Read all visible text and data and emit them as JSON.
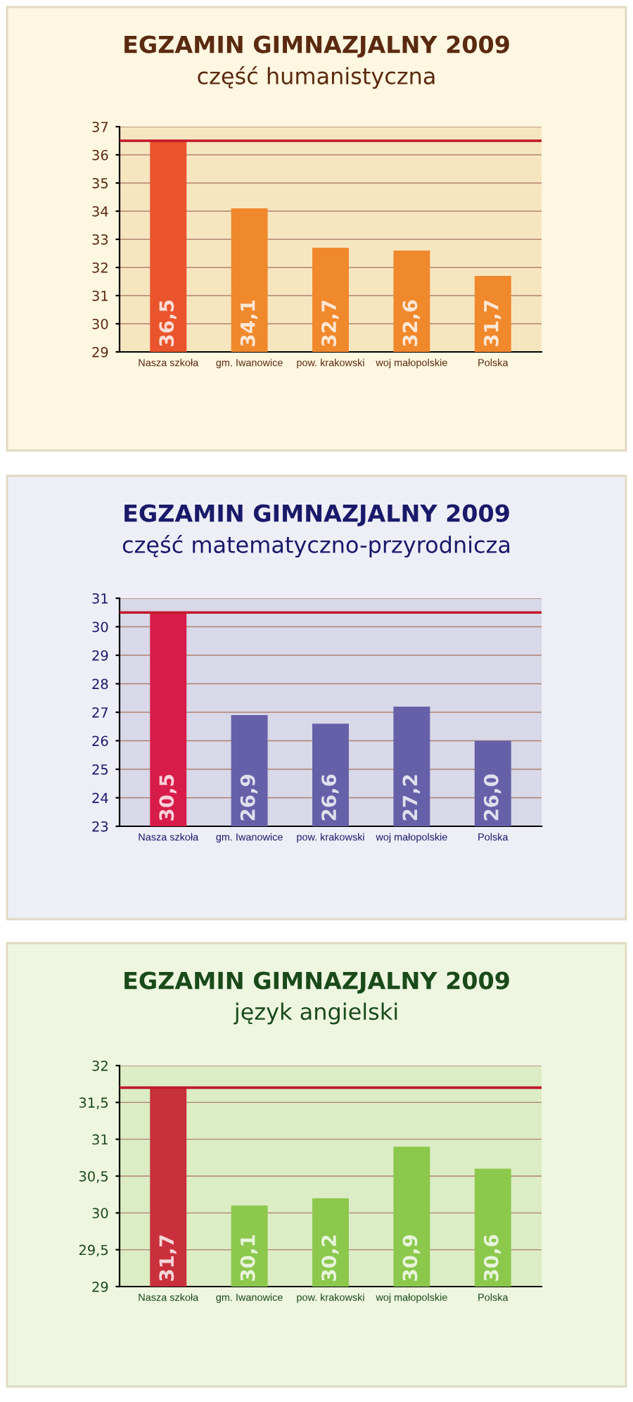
{
  "chart_data": [
    {
      "type": "bar",
      "title": "EGZAMIN GIMNAZJALNY 2009",
      "subtitle": "część humanistyczna",
      "categories": [
        "Nasza szkoła",
        "gm. Iwanowice",
        "pow. krakowski",
        "woj małopolskie",
        "Polska"
      ],
      "values": [
        36.5,
        34.1,
        32.7,
        32.6,
        31.7
      ],
      "value_labels": [
        "36,5",
        "34,1",
        "32,7",
        "32,6",
        "31,7"
      ],
      "colors": [
        "#e9542c",
        "#f0882c",
        "#f0882c",
        "#f0882c",
        "#f0882c"
      ],
      "ylim": [
        29,
        37
      ],
      "yticks": [
        29,
        30,
        31,
        32,
        33,
        34,
        35,
        36,
        37
      ],
      "grid": "y",
      "ref_lines": [
        {
          "axis": "y",
          "value": 36.5,
          "color": "#c0182a"
        }
      ]
    },
    {
      "type": "bar",
      "title": "EGZAMIN GIMNAZJALNY 2009",
      "subtitle": "część matematyczno-przyrodnicza",
      "categories": [
        "Nasza szkoła",
        "gm. Iwanowice",
        "pow. krakowski",
        "woj małopolskie",
        "Polska"
      ],
      "values": [
        30.5,
        26.9,
        26.6,
        27.2,
        26.0
      ],
      "value_labels": [
        "30,5",
        "26,9",
        "26,6",
        "27,2",
        "26,0"
      ],
      "colors": [
        "#d81c4a",
        "#6660a8",
        "#6660a8",
        "#6660a8",
        "#6660a8"
      ],
      "ylim": [
        23,
        31
      ],
      "yticks": [
        23,
        24,
        25,
        26,
        27,
        28,
        29,
        30,
        31
      ],
      "grid": "y",
      "ref_lines": [
        {
          "axis": "y",
          "value": 30.5,
          "color": "#c0182a"
        }
      ]
    },
    {
      "type": "bar",
      "title": "EGZAMIN GIMNAZJALNY 2009",
      "subtitle": "język angielski",
      "categories": [
        "Nasza szkoła",
        "gm. Iwanowice",
        "pow. krakowski",
        "woj małopolskie",
        "Polska"
      ],
      "values": [
        31.7,
        30.1,
        30.2,
        30.9,
        30.6
      ],
      "value_labels": [
        "31,7",
        "30,1",
        "30,2",
        "30,9",
        "30,6"
      ],
      "colors": [
        "#c8303c",
        "#8cc84c",
        "#8cc84c",
        "#8cc84c",
        "#8cc84c"
      ],
      "ylim": [
        29,
        32
      ],
      "yticks": [
        29,
        {
          "value": 29.5,
          "label": "29,5"
        },
        30,
        {
          "value": 30.5,
          "label": "30,5"
        },
        31,
        {
          "value": 31.5,
          "label": "31,5"
        },
        32
      ],
      "grid": "y",
      "ref_lines": [
        {
          "axis": "y",
          "value": 31.7,
          "color": "#c0182a"
        }
      ]
    }
  ]
}
